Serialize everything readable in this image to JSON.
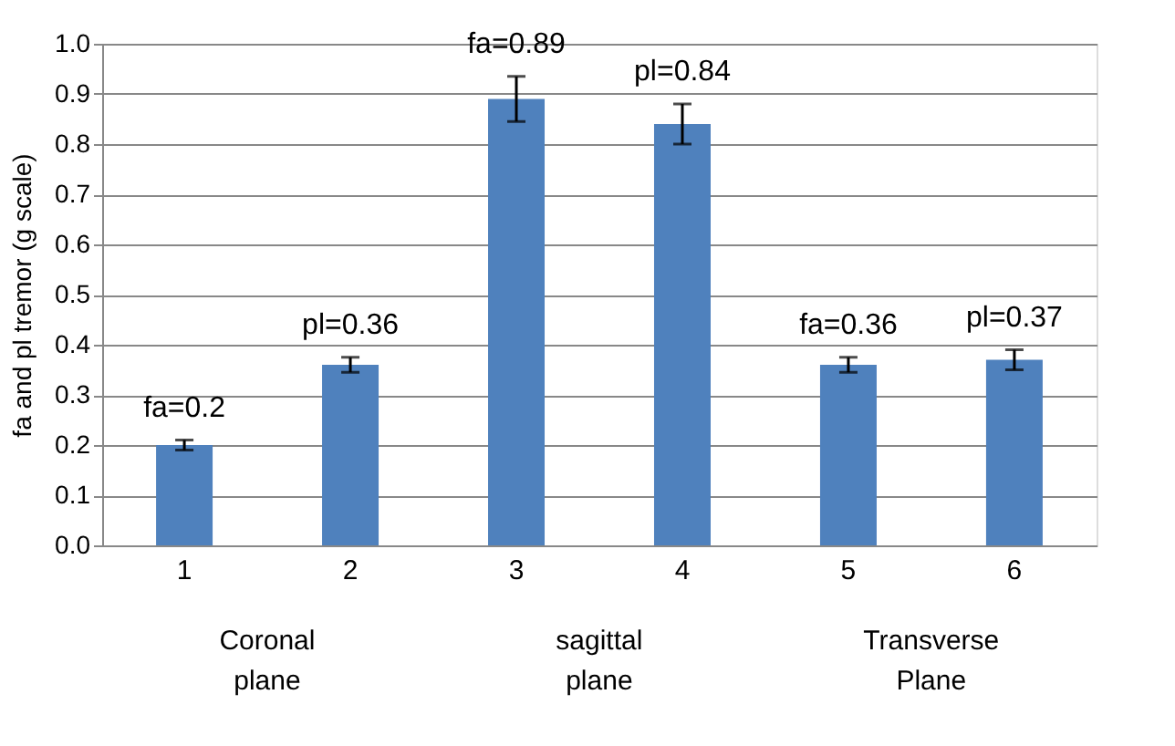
{
  "chart_data": {
    "type": "bar",
    "ylabel": "fa and pl tremor (g scale)",
    "categories": [
      "1",
      "2",
      "3",
      "4",
      "5",
      "6"
    ],
    "values": [
      0.2,
      0.36,
      0.89,
      0.84,
      0.36,
      0.37
    ],
    "errors": [
      0.01,
      0.015,
      0.045,
      0.04,
      0.015,
      0.02
    ],
    "value_labels": [
      "fa=0.2",
      "pl=0.36",
      "fa=0.89",
      "pl=0.84",
      "fa=0.36",
      "pl=0.37"
    ],
    "color": "#4f81bd",
    "ylim": [
      0,
      1.0
    ],
    "yticks": [
      {
        "value": 0,
        "label": "0.0"
      },
      0.1,
      0.2,
      0.3,
      0.4,
      0.5,
      0.6,
      0.7,
      0.8,
      0.9,
      {
        "value": 1.0,
        "label": "1.0"
      }
    ],
    "grid": "y",
    "annotations": [
      "Coronal plane",
      "sagittal plane",
      "Transverse Plane"
    ]
  }
}
